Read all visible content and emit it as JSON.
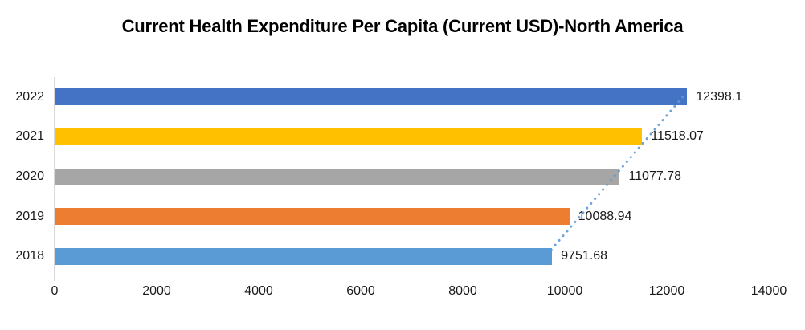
{
  "title": "Current Health Expenditure Per Capita (Current USD)-North America",
  "chart_data": {
    "type": "bar",
    "orientation": "horizontal",
    "title": "Current Health Expenditure Per Capita (Current USD)-North America",
    "categories": [
      "2022",
      "2021",
      "2020",
      "2019",
      "2018"
    ],
    "values": [
      12398.1,
      11518.07,
      11077.78,
      10088.94,
      9751.68
    ],
    "value_labels": [
      "12398.1",
      "11518.07",
      "11077.78",
      "10088.94",
      "9751.68"
    ],
    "bar_colors": [
      "#4472C4",
      "#FFC000",
      "#A6A6A6",
      "#ED7D31",
      "#5B9BD5"
    ],
    "xlim": [
      0,
      14000
    ],
    "x_ticks": [
      0,
      2000,
      4000,
      6000,
      8000,
      10000,
      12000,
      14000
    ],
    "grid": false,
    "legend": false,
    "axis_line_color": "#D9D9D9",
    "label_color": "#1a1a1a",
    "trendline": {
      "type": "linear",
      "style": "dotted",
      "color": "#5B9BD5"
    }
  }
}
